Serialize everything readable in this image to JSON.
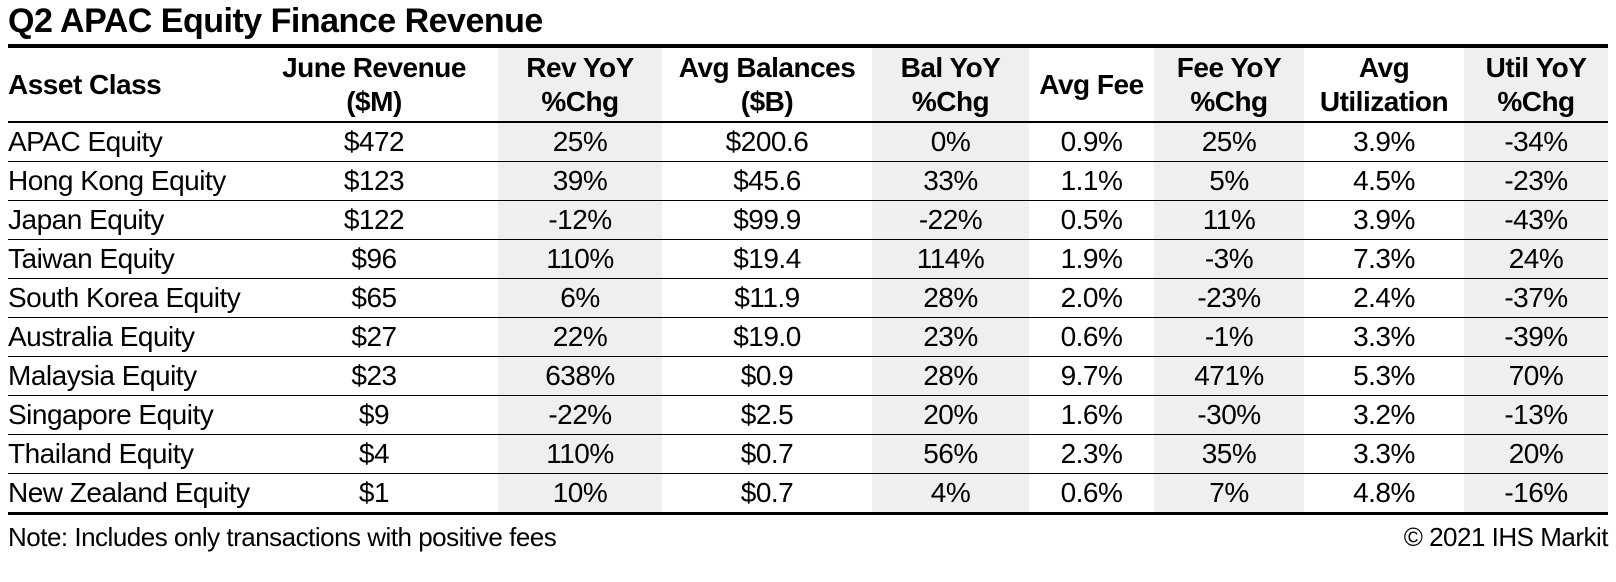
{
  "header": {
    "title": "Q2 APAC Equity Finance Revenue"
  },
  "footer": {
    "note": "Note: Includes only transactions with positive fees",
    "copyright": "© 2021 IHS Markit"
  },
  "colors": {
    "shaded_column_bg": "#efefef",
    "border": "#000000",
    "text": "#000000",
    "background": "#ffffff"
  },
  "chart_data": {
    "type": "table",
    "title": "Q2 APAC Equity Finance Revenue",
    "columns": [
      {
        "id": "asset-class",
        "lines": [
          "Asset Class"
        ],
        "shaded": false,
        "align": "left"
      },
      {
        "id": "june-revenue",
        "lines": [
          "June Revenue",
          "($M)"
        ],
        "shaded": false,
        "align": "center"
      },
      {
        "id": "rev-yoy",
        "lines": [
          "Rev YoY",
          "%Chg"
        ],
        "shaded": true,
        "align": "center"
      },
      {
        "id": "avg-balances",
        "lines": [
          "Avg Balances",
          "($B)"
        ],
        "shaded": false,
        "align": "center"
      },
      {
        "id": "bal-yoy",
        "lines": [
          "Bal YoY",
          "%Chg"
        ],
        "shaded": true,
        "align": "center"
      },
      {
        "id": "avg-fee",
        "lines": [
          "Avg Fee"
        ],
        "shaded": false,
        "align": "center"
      },
      {
        "id": "fee-yoy",
        "lines": [
          "Fee YoY",
          "%Chg"
        ],
        "shaded": true,
        "align": "center"
      },
      {
        "id": "avg-utilization",
        "lines": [
          "Avg",
          "Utilization"
        ],
        "shaded": false,
        "align": "center"
      },
      {
        "id": "util-yoy",
        "lines": [
          "Util YoY",
          "%Chg"
        ],
        "shaded": true,
        "align": "center"
      }
    ],
    "rows": [
      [
        "APAC Equity",
        "$472",
        "25%",
        "$200.6",
        "0%",
        "0.9%",
        "25%",
        "3.9%",
        "-34%"
      ],
      [
        "Hong Kong Equity",
        "$123",
        "39%",
        "$45.6",
        "33%",
        "1.1%",
        "5%",
        "4.5%",
        "-23%"
      ],
      [
        "Japan Equity",
        "$122",
        "-12%",
        "$99.9",
        "-22%",
        "0.5%",
        "11%",
        "3.9%",
        "-43%"
      ],
      [
        "Taiwan Equity",
        "$96",
        "110%",
        "$19.4",
        "114%",
        "1.9%",
        "-3%",
        "7.3%",
        "24%"
      ],
      [
        "South Korea Equity",
        "$65",
        "6%",
        "$11.9",
        "28%",
        "2.0%",
        "-23%",
        "2.4%",
        "-37%"
      ],
      [
        "Australia Equity",
        "$27",
        "22%",
        "$19.0",
        "23%",
        "0.6%",
        "-1%",
        "3.3%",
        "-39%"
      ],
      [
        "Malaysia Equity",
        "$23",
        "638%",
        "$0.9",
        "28%",
        "9.7%",
        "471%",
        "5.3%",
        "70%"
      ],
      [
        "Singapore Equity",
        "$9",
        "-22%",
        "$2.5",
        "20%",
        "1.6%",
        "-30%",
        "3.2%",
        "-13%"
      ],
      [
        "Thailand Equity",
        "$4",
        "110%",
        "$0.7",
        "56%",
        "2.3%",
        "35%",
        "3.3%",
        "20%"
      ],
      [
        "New Zealand Equity",
        "$1",
        "10%",
        "$0.7",
        "4%",
        "0.6%",
        "7%",
        "4.8%",
        "-16%"
      ]
    ]
  }
}
